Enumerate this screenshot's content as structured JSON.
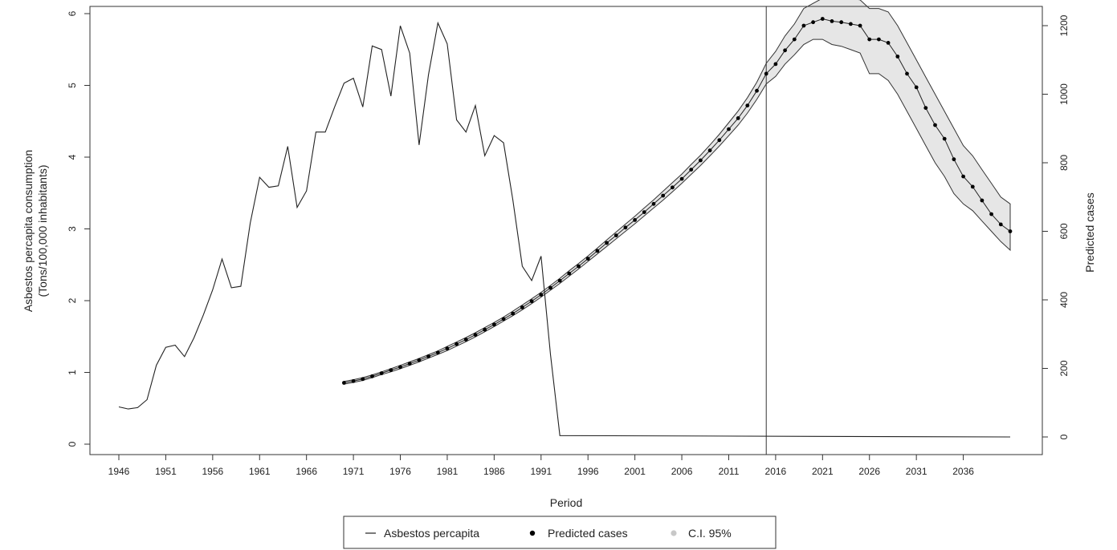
{
  "chart_data": {
    "type": "line",
    "xlabel": "Period",
    "ylabel_left": [
      "Asbestos percapita consumption",
      "(Tons/100,000 inhabitants)"
    ],
    "ylabel_right": "Predicted cases",
    "xlim": [
      1946,
      2041
    ],
    "ylim_left": [
      0,
      6
    ],
    "ylim_right": [
      0,
      1200
    ],
    "x_ticks": [
      1946,
      1951,
      1956,
      1961,
      1966,
      1971,
      1976,
      1981,
      1986,
      1991,
      1996,
      2001,
      2006,
      2011,
      2016,
      2021,
      2026,
      2031,
      2036
    ],
    "x_tick_labels": [
      "1946",
      "1951",
      "1956",
      "1961",
      "1966",
      "1971",
      "1976",
      "1981",
      "1986",
      "1991",
      "1996",
      "2001",
      "2006",
      "2011",
      "2016",
      "2021",
      "2026",
      "2031",
      "2036"
    ],
    "y_left_ticks": [
      0,
      1,
      2,
      3,
      4,
      5,
      6
    ],
    "y_left_tick_labels": [
      "0",
      "1",
      "2",
      "3",
      "4",
      "5",
      "6"
    ],
    "y_right_ticks": [
      0,
      200,
      400,
      600,
      800,
      1000,
      1200
    ],
    "y_right_tick_labels": [
      "0",
      "200",
      "400",
      "600",
      "800",
      "1000",
      "1200"
    ],
    "vline_x": 2015,
    "grid": false,
    "legend_position": "bottom",
    "legend": [
      {
        "label": "Asbestos percapita",
        "symbol": "line"
      },
      {
        "label": "Predicted cases",
        "symbol": "point"
      },
      {
        "label": "C.I. 95%",
        "symbol": "shade"
      }
    ],
    "series": [
      {
        "name": "Asbestos percapita",
        "axis": "left",
        "x": [
          1946,
          1947,
          1948,
          1949,
          1950,
          1951,
          1952,
          1953,
          1954,
          1955,
          1956,
          1957,
          1958,
          1959,
          1960,
          1961,
          1962,
          1963,
          1964,
          1965,
          1966,
          1967,
          1968,
          1969,
          1970,
          1971,
          1972,
          1973,
          1974,
          1975,
          1976,
          1977,
          1978,
          1979,
          1980,
          1981,
          1982,
          1983,
          1984,
          1985,
          1986,
          1987,
          1988,
          1989,
          1990,
          1991,
          1992,
          1993,
          2041
        ],
        "y": [
          0.52,
          0.49,
          0.51,
          0.62,
          1.1,
          1.35,
          1.38,
          1.22,
          1.48,
          1.8,
          2.15,
          2.58,
          2.18,
          2.2,
          3.08,
          3.72,
          3.58,
          3.6,
          4.15,
          3.3,
          3.53,
          4.35,
          4.35,
          4.7,
          5.03,
          5.1,
          4.7,
          5.55,
          5.5,
          4.85,
          5.83,
          5.45,
          4.17,
          5.15,
          5.87,
          5.58,
          4.52,
          4.35,
          4.72,
          4.02,
          4.3,
          4.2,
          3.4,
          2.48,
          2.28,
          2.62,
          1.25,
          0.12,
          0.1
        ]
      },
      {
        "name": "Predicted cases",
        "axis": "right",
        "x": [
          1970,
          1971,
          1972,
          1973,
          1974,
          1975,
          1976,
          1977,
          1978,
          1979,
          1980,
          1981,
          1982,
          1983,
          1984,
          1985,
          1986,
          1987,
          1988,
          1989,
          1990,
          1991,
          1992,
          1993,
          1994,
          1995,
          1996,
          1997,
          1998,
          1999,
          2000,
          2001,
          2002,
          2003,
          2004,
          2005,
          2006,
          2007,
          2008,
          2009,
          2010,
          2011,
          2012,
          2013,
          2014,
          2015,
          2016,
          2017,
          2018,
          2019,
          2020,
          2021,
          2022,
          2023,
          2024,
          2025,
          2026,
          2027,
          2028,
          2029,
          2030,
          2031,
          2032,
          2033,
          2034,
          2035,
          2036,
          2037,
          2038,
          2039,
          2040,
          2041
        ],
        "y": [
          158,
          163,
          169,
          177,
          186,
          195,
          204,
          214,
          224,
          235,
          246,
          258,
          271,
          284,
          298,
          313,
          328,
          344,
          360,
          378,
          396,
          415,
          435,
          456,
          477,
          498,
          520,
          543,
          566,
          588,
          611,
          633,
          656,
          680,
          704,
          728,
          753,
          780,
          807,
          836,
          866,
          898,
          930,
          967,
          1010,
          1060,
          1088,
          1128,
          1160,
          1200,
          1210,
          1220,
          1213,
          1210,
          1205,
          1200,
          1160,
          1160,
          1150,
          1110,
          1060,
          1020,
          960,
          910,
          870,
          810,
          760,
          730,
          690,
          650,
          620,
          600
        ],
        "ci_lower": [
          154,
          159,
          165,
          173,
          182,
          190,
          199,
          209,
          219,
          230,
          241,
          252,
          265,
          278,
          292,
          307,
          322,
          338,
          354,
          371,
          389,
          408,
          428,
          448,
          469,
          490,
          512,
          534,
          556,
          578,
          600,
          622,
          645,
          668,
          691,
          715,
          740,
          766,
          792,
          820,
          849,
          879,
          910,
          945,
          985,
          1030,
          1052,
          1088,
          1115,
          1145,
          1160,
          1160,
          1145,
          1140,
          1130,
          1120,
          1060,
          1060,
          1040,
          1000,
          950,
          900,
          850,
          800,
          760,
          710,
          680,
          660,
          630,
          600,
          570,
          545
        ],
        "ci_upper": [
          162,
          167,
          173,
          181,
          190,
          199,
          209,
          219,
          229,
          240,
          251,
          264,
          277,
          290,
          304,
          319,
          334,
          350,
          367,
          385,
          403,
          422,
          442,
          463,
          485,
          506,
          528,
          551,
          575,
          598,
          621,
          644,
          668,
          692,
          717,
          742,
          767,
          795,
          822,
          852,
          883,
          917,
          951,
          990,
          1035,
          1090,
          1125,
          1170,
          1205,
          1250,
          1265,
          1280,
          1278,
          1280,
          1280,
          1275,
          1250,
          1250,
          1240,
          1200,
          1150,
          1100,
          1050,
          1000,
          950,
          900,
          850,
          820,
          780,
          740,
          700,
          680
        ]
      }
    ]
  }
}
